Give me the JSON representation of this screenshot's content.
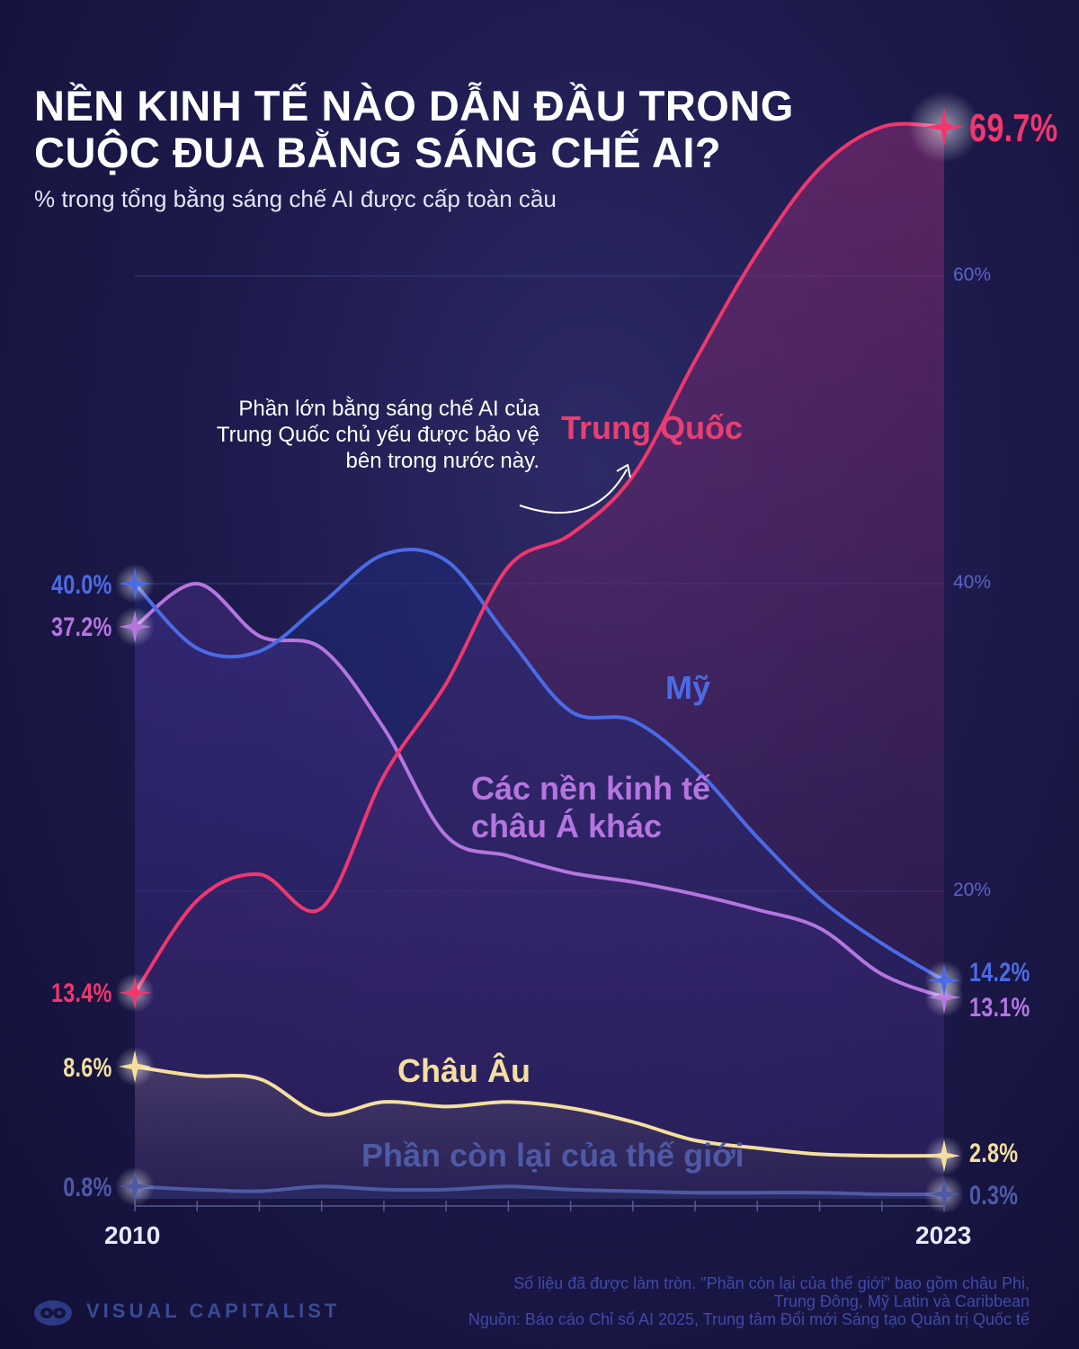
{
  "title": "NỀN KINH TẾ NÀO DẪN ĐẦU TRONG CUỘC ĐUA BẰNG SÁNG CHẾ AI?",
  "subtitle": "% trong tổng bằng sáng chế AI được cấp toàn cầu",
  "annotation": "Phần lớn bằng sáng chế AI của Trung Quốc chủ yếu được bảo vệ bên trong nước này.",
  "notes": {
    "line1": "Số liệu đã được làm tròn. \"Phần còn lại của thế giới\" bao gồm châu Phi,",
    "line2": "Trung Đông, Mỹ Latin và Caribbean",
    "line3": "Nguồn: Báo cáo Chỉ số AI 2025, Trung tâm Đổi mới Sáng tạo Quản trị Quốc tế"
  },
  "brand": "VISUAL CAPITALIST",
  "colors": {
    "china": "#f0376e",
    "us": "#4b6be6",
    "asia": "#b575df",
    "europe": "#f4dfa0",
    "rest": "#4e5aa6",
    "background": "#1d1a4c"
  },
  "chart_data": {
    "type": "line",
    "x": [
      2010,
      2011,
      2012,
      2013,
      2014,
      2015,
      2016,
      2017,
      2018,
      2019,
      2020,
      2021,
      2022,
      2023
    ],
    "xlim": [
      2010,
      2023
    ],
    "ylim": [
      0,
      70
    ],
    "yticks": [
      20,
      40,
      60
    ],
    "ytick_labels": [
      "20%",
      "40%",
      "60%"
    ],
    "x_labels": [
      "2010",
      "2023"
    ],
    "grid": true,
    "series": [
      {
        "key": "china",
        "name": "Trung Quốc",
        "start_label": "13.4%",
        "end_label": "69.7%",
        "values": [
          13.4,
          19.4,
          21.1,
          18.9,
          27.5,
          33.5,
          41.1,
          43.2,
          47.0,
          54.5,
          61.5,
          67.0,
          69.7,
          69.7
        ]
      },
      {
        "key": "us",
        "name": "Mỹ",
        "start_label": "40.0%",
        "end_label": "14.2%",
        "values": [
          40.0,
          35.8,
          35.6,
          38.7,
          41.9,
          41.5,
          36.5,
          31.7,
          31.1,
          28.0,
          23.5,
          19.5,
          16.6,
          14.2
        ]
      },
      {
        "key": "asia",
        "name": "Các nền kinh tế châu Á khác",
        "start_label": "37.2%",
        "end_label": "13.1%",
        "values": [
          37.2,
          40.0,
          36.6,
          35.8,
          30.6,
          23.6,
          22.3,
          21.2,
          20.6,
          19.8,
          18.8,
          17.6,
          14.6,
          13.1
        ]
      },
      {
        "key": "europe",
        "name": "Châu Âu",
        "start_label": "8.6%",
        "end_label": "2.8%",
        "values": [
          8.6,
          8.0,
          7.8,
          5.5,
          6.3,
          6.0,
          6.3,
          5.9,
          5.0,
          3.8,
          3.3,
          2.9,
          2.8,
          2.8
        ]
      },
      {
        "key": "rest",
        "name": "Phần còn lại của thế giới",
        "start_label": "0.8%",
        "end_label": "0.3%",
        "values": [
          0.8,
          0.6,
          0.5,
          0.8,
          0.6,
          0.6,
          0.8,
          0.6,
          0.5,
          0.4,
          0.4,
          0.4,
          0.3,
          0.3
        ]
      }
    ]
  }
}
